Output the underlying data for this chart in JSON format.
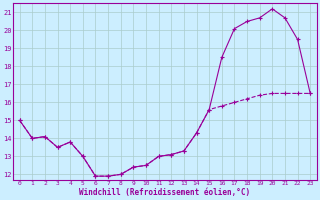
{
  "xlabel": "Windchill (Refroidissement éolien,°C)",
  "background_color": "#cceeff",
  "line_color": "#990099",
  "grid_color": "#aacccc",
  "hours": [
    0,
    1,
    2,
    3,
    4,
    5,
    6,
    7,
    8,
    9,
    10,
    11,
    12,
    13,
    14,
    15,
    16,
    17,
    18,
    19,
    20,
    21,
    22,
    23
  ],
  "upper": [
    15.0,
    14.0,
    14.1,
    13.5,
    13.8,
    13.0,
    11.9,
    11.9,
    12.0,
    12.4,
    12.5,
    13.0,
    13.1,
    13.3,
    14.3,
    15.6,
    18.5,
    20.1,
    20.5,
    20.7,
    21.2,
    20.7,
    19.5,
    16.5
  ],
  "lower": [
    15.0,
    14.0,
    14.1,
    13.5,
    13.8,
    13.0,
    11.9,
    11.9,
    12.0,
    12.4,
    12.5,
    13.0,
    13.1,
    13.3,
    14.3,
    15.6,
    15.8,
    16.0,
    16.2,
    16.4,
    16.5,
    16.5,
    16.5,
    16.5
  ],
  "ylim": [
    11.7,
    21.5
  ],
  "xlim": [
    -0.5,
    23.5
  ],
  "yticks": [
    12,
    13,
    14,
    15,
    16,
    17,
    18,
    19,
    20,
    21
  ],
  "xticks": [
    0,
    1,
    2,
    3,
    4,
    5,
    6,
    7,
    8,
    9,
    10,
    11,
    12,
    13,
    14,
    15,
    16,
    17,
    18,
    19,
    20,
    21,
    22,
    23
  ]
}
